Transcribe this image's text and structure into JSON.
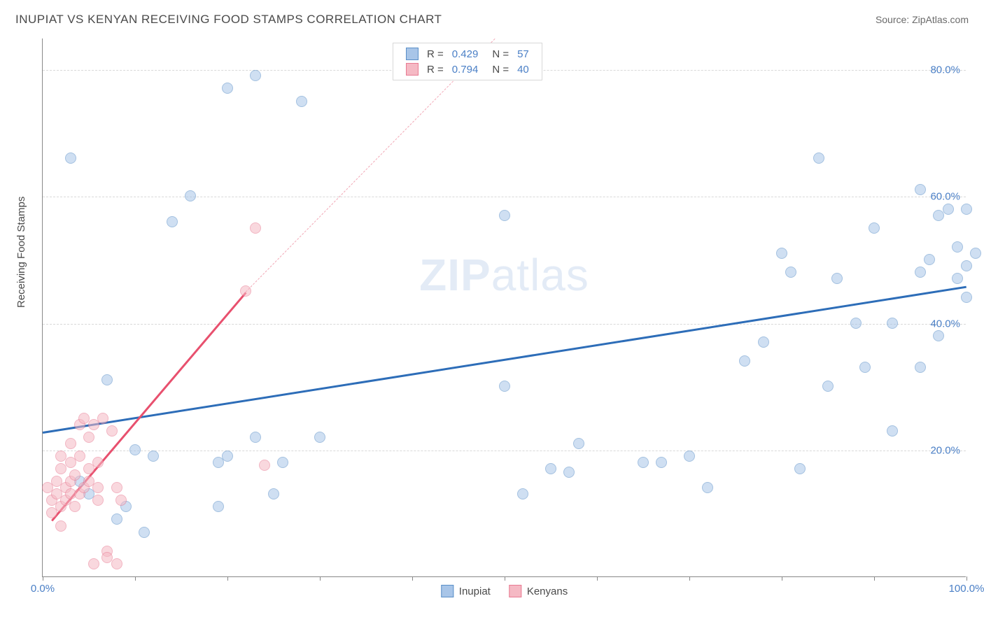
{
  "title": "INUPIAT VS KENYAN RECEIVING FOOD STAMPS CORRELATION CHART",
  "source": "Source: ZipAtlas.com",
  "watermark_zip": "ZIP",
  "watermark_atlas": "atlas",
  "y_axis_label": "Receiving Food Stamps",
  "chart": {
    "type": "scatter",
    "xlim": [
      0,
      100
    ],
    "ylim": [
      0,
      85
    ],
    "x_ticks": [
      0,
      10,
      20,
      30,
      40,
      50,
      60,
      70,
      80,
      90,
      100
    ],
    "x_tick_labels": {
      "0": "0.0%",
      "100": "100.0%"
    },
    "y_gridlines": [
      20,
      40,
      60,
      80
    ],
    "y_tick_labels": {
      "20": "20.0%",
      "40": "40.0%",
      "60": "60.0%",
      "80": "80.0%"
    },
    "background_color": "#ffffff",
    "grid_color": "#d8d8d8",
    "axis_color": "#888888",
    "tick_label_color": "#4a7fc6",
    "point_radius": 8,
    "point_opacity": 0.55,
    "series": [
      {
        "name": "Inupiat",
        "color_fill": "#a8c5e8",
        "color_stroke": "#5a8fc8",
        "r_value": "0.429",
        "n_value": "57",
        "trend": {
          "x1": 0,
          "y1": 23,
          "x2": 100,
          "y2": 46,
          "color": "#2d6db8",
          "width": 2.5
        },
        "points": [
          [
            3,
            66
          ],
          [
            4,
            15
          ],
          [
            5,
            13
          ],
          [
            7,
            31
          ],
          [
            8,
            9
          ],
          [
            9,
            11
          ],
          [
            10,
            20
          ],
          [
            11,
            7
          ],
          [
            12,
            19
          ],
          [
            14,
            56
          ],
          [
            16,
            60
          ],
          [
            19,
            11
          ],
          [
            19,
            18
          ],
          [
            20,
            19
          ],
          [
            20,
            77
          ],
          [
            23,
            22
          ],
          [
            23,
            79
          ],
          [
            25,
            13
          ],
          [
            26,
            18
          ],
          [
            28,
            75
          ],
          [
            30,
            22
          ],
          [
            50,
            57
          ],
          [
            50,
            30
          ],
          [
            52,
            13
          ],
          [
            55,
            17
          ],
          [
            57,
            16.5
          ],
          [
            58,
            21
          ],
          [
            65,
            18
          ],
          [
            67,
            18
          ],
          [
            70,
            19
          ],
          [
            72,
            14
          ],
          [
            76,
            34
          ],
          [
            78,
            37
          ],
          [
            80,
            51
          ],
          [
            81,
            48
          ],
          [
            82,
            17
          ],
          [
            84,
            66
          ],
          [
            85,
            30
          ],
          [
            86,
            47
          ],
          [
            88,
            40
          ],
          [
            89,
            33
          ],
          [
            90,
            55
          ],
          [
            92,
            23
          ],
          [
            92,
            40
          ],
          [
            95,
            48
          ],
          [
            95,
            33
          ],
          [
            95,
            61
          ],
          [
            96,
            50
          ],
          [
            97,
            38
          ],
          [
            97,
            57
          ],
          [
            98,
            58
          ],
          [
            99,
            47
          ],
          [
            99,
            52
          ],
          [
            100,
            44
          ],
          [
            100,
            58
          ],
          [
            100,
            49
          ],
          [
            101,
            51
          ]
        ]
      },
      {
        "name": "Kenyans",
        "color_fill": "#f5b9c4",
        "color_stroke": "#e87a92",
        "r_value": "0.794",
        "n_value": "40",
        "trend": {
          "x1": 1,
          "y1": 9,
          "x2": 22,
          "y2": 45,
          "color": "#e8506e",
          "width": 2.5
        },
        "trend_dash": {
          "x1": 22,
          "y1": 45,
          "x2": 49,
          "y2": 85,
          "color": "#f2a8b6"
        },
        "points": [
          [
            0.5,
            14
          ],
          [
            1,
            12
          ],
          [
            1,
            10
          ],
          [
            1.5,
            13
          ],
          [
            1.5,
            15
          ],
          [
            2,
            11
          ],
          [
            2,
            8
          ],
          [
            2,
            17
          ],
          [
            2,
            19
          ],
          [
            2.5,
            14
          ],
          [
            2.5,
            12
          ],
          [
            3,
            13
          ],
          [
            3,
            15
          ],
          [
            3,
            18
          ],
          [
            3,
            21
          ],
          [
            3.5,
            11
          ],
          [
            3.5,
            16
          ],
          [
            4,
            13
          ],
          [
            4,
            24
          ],
          [
            4,
            19
          ],
          [
            4.5,
            14
          ],
          [
            4.5,
            25
          ],
          [
            5,
            15
          ],
          [
            5,
            17
          ],
          [
            5,
            22
          ],
          [
            5.5,
            24
          ],
          [
            5.5,
            2
          ],
          [
            6,
            14
          ],
          [
            6,
            12
          ],
          [
            6,
            18
          ],
          [
            6.5,
            25
          ],
          [
            7,
            4
          ],
          [
            7,
            3
          ],
          [
            7.5,
            23
          ],
          [
            8,
            14
          ],
          [
            8,
            2
          ],
          [
            8.5,
            12
          ],
          [
            22,
            45
          ],
          [
            23,
            55
          ],
          [
            24,
            17.5
          ]
        ]
      }
    ]
  },
  "stats_legend": {
    "r_label": "R =",
    "n_label": "N ="
  },
  "bottom_legend": {
    "items": [
      "Inupiat",
      "Kenyans"
    ]
  }
}
